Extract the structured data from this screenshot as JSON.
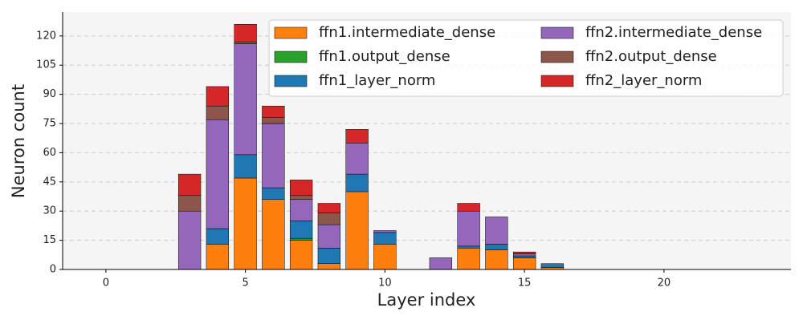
{
  "chart_data": {
    "type": "stacked_bar",
    "x_label": "Layer index",
    "y_label": "Neuron count",
    "x": [
      0,
      1,
      2,
      3,
      4,
      5,
      6,
      7,
      8,
      9,
      10,
      11,
      12,
      13,
      14,
      15,
      16,
      17,
      18,
      19,
      20,
      21,
      22,
      23
    ],
    "series": [
      {
        "name": "ffn1.intermediate_dense",
        "color": "#ff7f0e",
        "values": [
          0,
          0,
          0,
          0,
          13,
          47,
          36,
          15,
          3,
          40,
          13,
          0,
          0,
          11,
          10,
          6,
          1,
          0,
          0,
          0,
          0,
          0,
          0,
          0
        ]
      },
      {
        "name": "ffn1.output_dense",
        "color": "#2ca02c",
        "values": [
          0,
          0,
          0,
          0,
          0,
          0,
          0,
          1,
          0,
          0,
          0,
          0,
          0,
          0,
          0,
          0,
          0,
          0,
          0,
          0,
          0,
          0,
          0,
          0
        ]
      },
      {
        "name": "ffn1_layer_norm",
        "color": "#1f77b4",
        "values": [
          0,
          0,
          0,
          0,
          8,
          12,
          6,
          9,
          8,
          9,
          6,
          0,
          0,
          1,
          3,
          1,
          2,
          0,
          0,
          0,
          0,
          0,
          0,
          0
        ]
      },
      {
        "name": "ffn2.intermediate_dense",
        "color": "#9467bd",
        "values": [
          0,
          0,
          0,
          30,
          56,
          57,
          33,
          11,
          12,
          16,
          1,
          0,
          6,
          18,
          14,
          1,
          0,
          0,
          0,
          0,
          0,
          0,
          0,
          0
        ]
      },
      {
        "name": "ffn2.output_dense",
        "color": "#8c564b",
        "values": [
          0,
          0,
          0,
          8,
          7,
          1,
          3,
          2,
          6,
          0,
          0,
          0,
          0,
          0,
          0,
          0,
          0,
          0,
          0,
          0,
          0,
          0,
          0,
          0
        ]
      },
      {
        "name": "ffn2_layer_norm",
        "color": "#d62728",
        "values": [
          0,
          0,
          0,
          11,
          10,
          9,
          6,
          8,
          5,
          7,
          0,
          0,
          0,
          4,
          0,
          1,
          0,
          0,
          0,
          0,
          0,
          0,
          0,
          0
        ]
      }
    ],
    "xlim": [
      -1.55,
      24.55
    ],
    "xticks": [
      0,
      5,
      10,
      15,
      20
    ],
    "ylim": [
      0,
      132.3
    ],
    "yticks": [
      0,
      15,
      30,
      45,
      60,
      75,
      90,
      105,
      120
    ],
    "grid": true,
    "legend": "upper right"
  }
}
